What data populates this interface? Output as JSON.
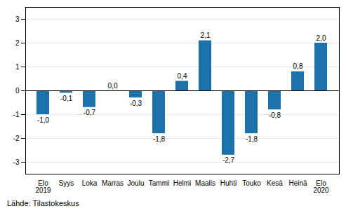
{
  "chart_data": {
    "type": "bar",
    "categories": [
      "Elo\n2019",
      "Syys",
      "Loka",
      "Marras",
      "Joulu",
      "Tammi",
      "Helmi",
      "Maalis",
      "Huhti",
      "Touko",
      "Kesä",
      "Heinä",
      "Elo\n2020"
    ],
    "values": [
      -1.0,
      -0.1,
      -0.7,
      0.0,
      -0.3,
      -1.8,
      0.4,
      2.1,
      -2.7,
      -1.8,
      -0.8,
      0.8,
      2.0
    ],
    "value_labels": [
      "-1,0",
      "-0,1",
      "-0,7",
      "0,0",
      "-0,3",
      "-1,8",
      "0,4",
      "2,1",
      "-2,7",
      "-1,8",
      "-0,8",
      "0,8",
      "2,0"
    ],
    "data_labels": true,
    "color": "#1a72a8",
    "ylim": [
      -3.5,
      3.5
    ],
    "yticks": [
      -3,
      -2,
      -1,
      0,
      1,
      2,
      3
    ],
    "grid": true,
    "caption": "Lähde: Tilastokeskus"
  }
}
